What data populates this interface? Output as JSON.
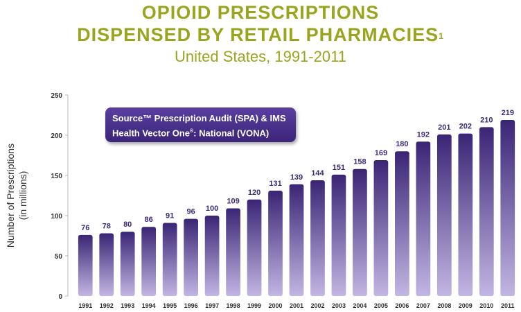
{
  "header": {
    "title_line1": "OPIOID PRESCRIPTIONS",
    "title_line2": "DISPENSED BY RETAIL PHARMACIES",
    "title_sup": "1",
    "subtitle": "United States, 1991-2011"
  },
  "source_box": {
    "line1": "Source™ Prescription Audit (SPA) & IMS",
    "line2_pre": "Health Vector One",
    "line2_sup": "®",
    "line2_post": ": National (VONA)"
  },
  "colors": {
    "title": "#9aa51d",
    "bar_top": "#3a2575",
    "bar_bottom": "#c2b6e3",
    "label": "#3d2a7d"
  },
  "chart_data": {
    "type": "bar",
    "title": "OPIOID PRESCRIPTIONS DISPENSED BY RETAIL PHARMACIES",
    "subtitle": "United States, 1991-2011",
    "xlabel": "",
    "ylabel": "Number of Prescriptions",
    "ylabel_sub": "(in millions)",
    "ylim": [
      0,
      250
    ],
    "yticks": [
      0,
      50,
      100,
      150,
      200,
      250
    ],
    "grid": false,
    "categories": [
      "1991",
      "1992",
      "1993",
      "1994",
      "1995",
      "1996",
      "1997",
      "1998",
      "1999",
      "2000",
      "2001",
      "2002",
      "2003",
      "2004",
      "2005",
      "2006",
      "2007",
      "2008",
      "2009",
      "2010",
      "2011"
    ],
    "values": [
      76,
      78,
      80,
      86,
      91,
      96,
      100,
      109,
      120,
      131,
      139,
      144,
      151,
      158,
      169,
      180,
      192,
      201,
      202,
      210,
      219
    ]
  }
}
